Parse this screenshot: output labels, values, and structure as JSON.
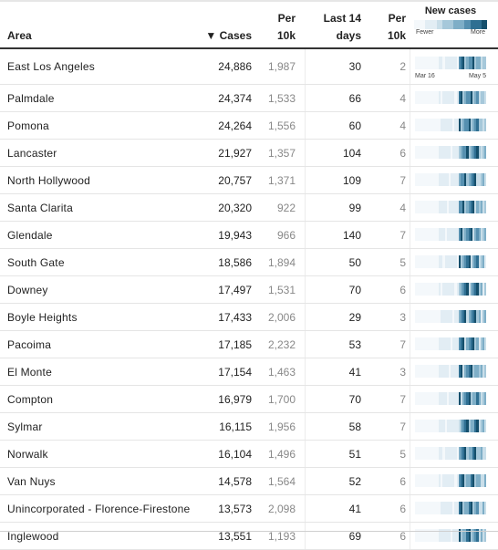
{
  "header": {
    "area": "Area",
    "cases": "▼ Cases",
    "per10k": "Per 10k",
    "last14": "Last 14 days",
    "per10k2": "Per 10k",
    "new_cases": "New cases",
    "fewer": "Fewer",
    "more": "More",
    "date_start": "Mar 16",
    "date_end": "May 5"
  },
  "colors": {
    "scale": [
      "#f4f8fb",
      "#e2edf4",
      "#c9dee9",
      "#a6c8da",
      "#7eaec7",
      "#5690b0",
      "#2f6f92",
      "#154f6c"
    ]
  },
  "rows": [
    {
      "area": "East Los Angeles",
      "cases": "24,886",
      "per10k": "1,987",
      "last14": "30",
      "per10k2": "2"
    },
    {
      "area": "Palmdale",
      "cases": "24,374",
      "per10k": "1,533",
      "last14": "66",
      "per10k2": "4"
    },
    {
      "area": "Pomona",
      "cases": "24,264",
      "per10k": "1,556",
      "last14": "60",
      "per10k2": "4"
    },
    {
      "area": "Lancaster",
      "cases": "21,927",
      "per10k": "1,357",
      "last14": "104",
      "per10k2": "6"
    },
    {
      "area": "North Hollywood",
      "cases": "20,757",
      "per10k": "1,371",
      "last14": "109",
      "per10k2": "7"
    },
    {
      "area": "Santa Clarita",
      "cases": "20,320",
      "per10k": "922",
      "last14": "99",
      "per10k2": "4"
    },
    {
      "area": "Glendale",
      "cases": "19,943",
      "per10k": "966",
      "last14": "140",
      "per10k2": "7"
    },
    {
      "area": "South Gate",
      "cases": "18,586",
      "per10k": "1,894",
      "last14": "50",
      "per10k2": "5"
    },
    {
      "area": "Downey",
      "cases": "17,497",
      "per10k": "1,531",
      "last14": "70",
      "per10k2": "6"
    },
    {
      "area": "Boyle Heights",
      "cases": "17,433",
      "per10k": "2,006",
      "last14": "29",
      "per10k2": "3"
    },
    {
      "area": "Pacoima",
      "cases": "17,185",
      "per10k": "2,232",
      "last14": "53",
      "per10k2": "7"
    },
    {
      "area": "El Monte",
      "cases": "17,154",
      "per10k": "1,463",
      "last14": "41",
      "per10k2": "3"
    },
    {
      "area": "Compton",
      "cases": "16,979",
      "per10k": "1,700",
      "last14": "70",
      "per10k2": "7"
    },
    {
      "area": "Sylmar",
      "cases": "16,115",
      "per10k": "1,956",
      "last14": "58",
      "per10k2": "7"
    },
    {
      "area": "Norwalk",
      "cases": "16,104",
      "per10k": "1,496",
      "last14": "51",
      "per10k2": "5"
    },
    {
      "area": "Van Nuys",
      "cases": "14,578",
      "per10k": "1,564",
      "last14": "52",
      "per10k2": "6"
    },
    {
      "area": "Unincorporated - Florence-Firestone",
      "cases": "13,573",
      "per10k": "2,098",
      "last14": "41",
      "per10k2": "6"
    },
    {
      "area": "Inglewood",
      "cases": "13,551",
      "per10k": "1,193",
      "last14": "69",
      "per10k2": "6"
    }
  ]
}
